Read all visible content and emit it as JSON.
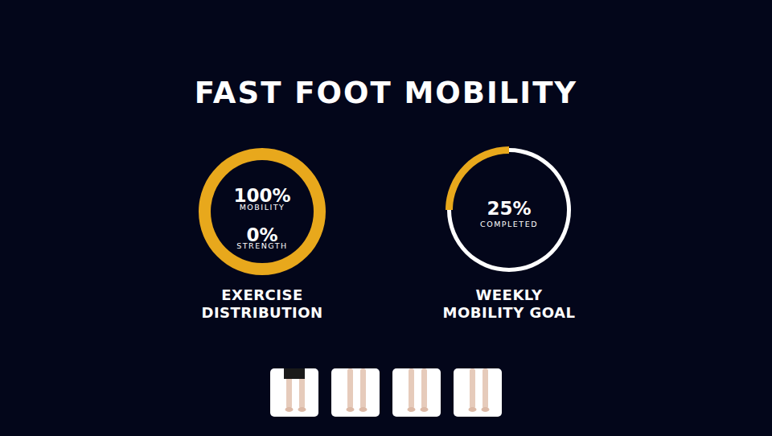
{
  "title": "FAST FOOT MOBILITY",
  "chart_data": [
    {
      "type": "pie",
      "title": "EXERCISE DISTRIBUTION",
      "categories": [
        "MOBILITY",
        "STRENGTH"
      ],
      "values": [
        100,
        0
      ],
      "value_labels": [
        "100%",
        "0%"
      ],
      "colors": [
        "#e8a81c",
        "#ffffff"
      ],
      "data_labels": true
    },
    {
      "type": "gauge",
      "title": "WEEKLY MOBILITY GOAL",
      "categories": [
        "COMPLETED"
      ],
      "values": [
        25
      ],
      "value_labels": [
        "25%"
      ],
      "ylim": [
        0,
        100
      ],
      "colors": [
        "#e8a81c"
      ],
      "data_labels": true
    }
  ]
}
